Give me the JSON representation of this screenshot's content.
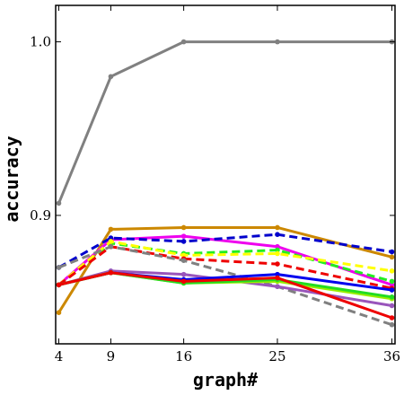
{
  "chart_data": {
    "type": "line",
    "xlabel": "graph#",
    "ylabel": "accuracy",
    "x": [
      4,
      9,
      16,
      25,
      36
    ],
    "xticks": [
      4,
      9,
      16,
      25,
      36
    ],
    "yticks": [
      0.9,
      1.0
    ],
    "ytick_labels": [
      "0.9",
      "1.0"
    ],
    "xlim": [
      3.7,
      36.3
    ],
    "ylim": [
      0.826,
      1.021
    ],
    "grid": false,
    "series": [
      {
        "values": [
          0.907,
          0.98,
          1.0,
          1.0,
          1.0
        ],
        "color": "#808080",
        "dash": "solid"
      },
      {
        "values": [
          0.844,
          0.892,
          0.893,
          0.893,
          0.876
        ],
        "color": "#cc8800",
        "dash": "solid"
      },
      {
        "values": [
          0.86,
          0.886,
          0.888,
          0.882,
          0.86
        ],
        "color": "#ee00ee",
        "dash": "solid"
      },
      {
        "values": [
          0.87,
          0.887,
          0.885,
          0.889,
          0.879
        ],
        "color": "#0000cc",
        "dash": "dashed"
      },
      {
        "values": [
          0.86,
          0.884,
          0.878,
          0.88,
          0.862
        ],
        "color": "#22ee22",
        "dash": "dashed"
      },
      {
        "values": [
          0.86,
          0.885,
          0.877,
          0.878,
          0.868
        ],
        "color": "#ffff00",
        "dash": "dashed"
      },
      {
        "values": [
          0.86,
          0.882,
          0.875,
          0.872,
          0.858
        ],
        "color": "#ee0000",
        "dash": "dashed"
      },
      {
        "values": [
          0.87,
          0.882,
          0.874,
          0.859,
          0.837
        ],
        "color": "#808080",
        "dash": "dashed"
      },
      {
        "values": [
          0.86,
          0.868,
          0.866,
          0.859,
          0.848
        ],
        "color": "#9955bb",
        "dash": "solid"
      },
      {
        "values": [
          0.86,
          0.867,
          0.863,
          0.866,
          0.857
        ],
        "color": "#0000ee",
        "dash": "solid"
      },
      {
        "values": [
          0.86,
          0.867,
          0.861,
          0.862,
          0.852
        ],
        "color": "#99ee00",
        "dash": "solid"
      },
      {
        "values": [
          0.86,
          0.867,
          0.861,
          0.863,
          0.853
        ],
        "color": "#22dd22",
        "dash": "solid"
      },
      {
        "values": [
          0.86,
          0.867,
          0.862,
          0.864,
          0.841
        ],
        "color": "#ee0000",
        "dash": "solid"
      }
    ]
  }
}
